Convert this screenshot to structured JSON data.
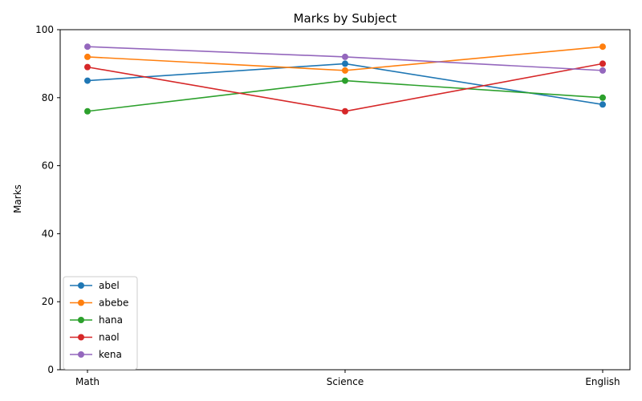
{
  "chart_data": {
    "type": "line",
    "title": "Marks by Subject",
    "xlabel": "",
    "ylabel": "Marks",
    "categories": [
      "Math",
      "Science",
      "English"
    ],
    "ylim": [
      0,
      100
    ],
    "yticks": [
      0,
      20,
      40,
      60,
      80,
      100
    ],
    "grid": false,
    "legend_position": "lower-left",
    "series": [
      {
        "name": "abel",
        "color": "#1f77b4",
        "values": [
          85,
          90,
          78
        ]
      },
      {
        "name": "abebe",
        "color": "#ff7f0e",
        "values": [
          92,
          88,
          95
        ]
      },
      {
        "name": "hana",
        "color": "#2ca02c",
        "values": [
          76,
          85,
          80
        ]
      },
      {
        "name": "naol",
        "color": "#d62728",
        "values": [
          89,
          76,
          90
        ]
      },
      {
        "name": "kena",
        "color": "#9467bd",
        "values": [
          95,
          92,
          88
        ]
      }
    ]
  }
}
